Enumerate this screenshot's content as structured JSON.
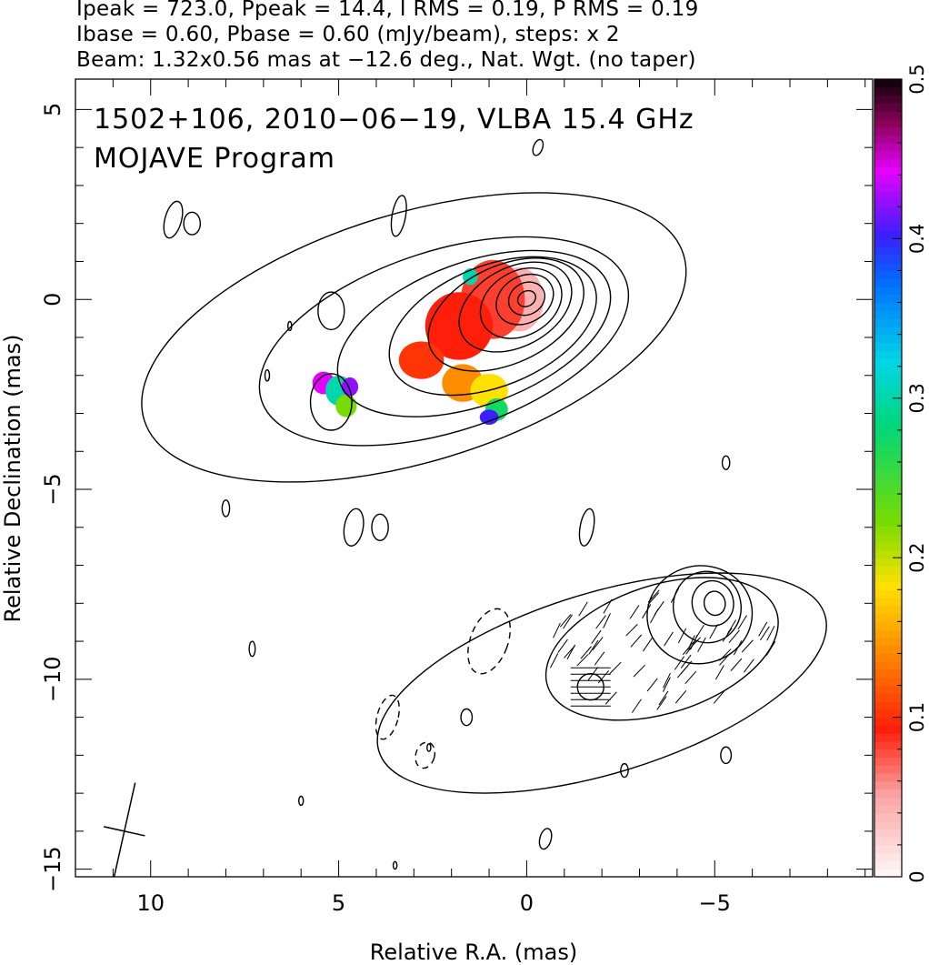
{
  "header": {
    "line1": "Ipeak = 723.0, Ppeak = 14.4, I RMS = 0.19, P RMS = 0.19",
    "line2": "Ibase = 0.60, Pbase = 0.60 (mJy/beam), steps: x 2",
    "line3": "Beam: 1.32x0.56 mas at −12.6 deg., Nat. Wgt. (no taper)"
  },
  "annotations": {
    "source_line": "1502+106, 2010−06−19, VLBA 15.4 GHz",
    "program_line": "MOJAVE Program"
  },
  "chart_data": {
    "type": "contour",
    "xlabel": "Relative R.A. (mas)",
    "ylabel": "Relative Declination (mas)",
    "xlim": [
      12,
      -9.2
    ],
    "ylim": [
      -15.2,
      5.8
    ],
    "x_ticks": [
      10,
      5,
      0,
      -5
    ],
    "y_ticks": [
      5,
      0,
      -5,
      -10,
      -15
    ],
    "x_tick_labels": [
      "10",
      "5",
      "0",
      "−5"
    ],
    "y_tick_labels": [
      "5",
      "0",
      "−5",
      "−10",
      "−15"
    ],
    "colorbar": {
      "min": 0,
      "max": 0.5,
      "ticks": [
        0,
        0.1,
        0.2,
        0.3,
        0.4,
        0.5
      ],
      "tick_labels": [
        "0",
        "0.1",
        "0.2",
        "0.3",
        "0.4",
        "0.5"
      ]
    },
    "upper_image": {
      "core": {
        "x": 0.0,
        "y": 0.0
      },
      "contours": [
        {
          "level": 1,
          "cx": 3.0,
          "cy": -1.0,
          "rx": 7.5,
          "ry": 3.3,
          "pa": -17
        },
        {
          "level": 2,
          "cx": 2.2,
          "cy": -1.1,
          "rx": 5.1,
          "ry": 2.4,
          "pa": -18
        },
        {
          "level": 3,
          "cx": 1.4,
          "cy": -0.9,
          "rx": 3.8,
          "ry": 1.9,
          "pa": -20
        },
        {
          "level": 4,
          "cx": 0.9,
          "cy": -0.7,
          "rx": 2.9,
          "ry": 1.6,
          "pa": -22
        },
        {
          "level": 5,
          "cx": 0.55,
          "cy": -0.4,
          "rx": 2.2,
          "ry": 1.3,
          "pa": -25
        },
        {
          "level": 6,
          "cx": 0.3,
          "cy": -0.2,
          "rx": 1.6,
          "ry": 1.05,
          "pa": -28
        },
        {
          "level": 7,
          "cx": 0.15,
          "cy": -0.1,
          "rx": 1.15,
          "ry": 0.85,
          "pa": -30
        },
        {
          "level": 8,
          "cx": 0.05,
          "cy": 0.0,
          "rx": 0.8,
          "ry": 0.62,
          "pa": -30
        },
        {
          "level": 9,
          "cx": 0.0,
          "cy": 0.02,
          "rx": 0.5,
          "ry": 0.42,
          "pa": -30
        },
        {
          "level": 10,
          "cx": 0.0,
          "cy": 0.02,
          "rx": 0.25,
          "ry": 0.2,
          "pa": -30
        }
      ],
      "islands": [
        {
          "cx": 9.4,
          "cy": 2.1,
          "rx": 0.22,
          "ry": 0.5,
          "pa": 15
        },
        {
          "cx": 8.9,
          "cy": 2.0,
          "rx": 0.22,
          "ry": 0.3,
          "pa": 0
        },
        {
          "cx": 3.4,
          "cy": 2.2,
          "rx": 0.18,
          "ry": 0.55,
          "pa": 10
        },
        {
          "cx": -0.3,
          "cy": 4.0,
          "rx": 0.12,
          "ry": 0.22,
          "pa": 20
        },
        {
          "cx": 4.6,
          "cy": -6.0,
          "rx": 0.25,
          "ry": 0.5,
          "pa": 10
        },
        {
          "cx": 3.9,
          "cy": -6.0,
          "rx": 0.22,
          "ry": 0.35,
          "pa": 0
        },
        {
          "cx": 8.0,
          "cy": -5.5,
          "rx": 0.1,
          "ry": 0.22,
          "pa": 0
        },
        {
          "cx": 6.3,
          "cy": -0.7,
          "rx": 0.05,
          "ry": 0.12,
          "pa": 0
        },
        {
          "cx": 6.9,
          "cy": -2.0,
          "rx": 0.06,
          "ry": 0.15,
          "pa": 0
        },
        {
          "cx": 5.2,
          "cy": -0.3,
          "rx": 0.35,
          "ry": 0.5,
          "pa": 0
        },
        {
          "cx": 5.2,
          "cy": -2.7,
          "rx": 0.55,
          "ry": 0.75,
          "pa": 0
        }
      ],
      "fractional_pol_pixels": [
        {
          "cx": 0.2,
          "cy": 0.0,
          "rx": 0.65,
          "ry": 0.85,
          "value": 0.04
        },
        {
          "cx": 0.9,
          "cy": 0.0,
          "rx": 0.85,
          "ry": 1.05,
          "value": 0.08
        },
        {
          "cx": 1.8,
          "cy": -0.7,
          "rx": 0.9,
          "ry": 0.9,
          "value": 0.09
        },
        {
          "cx": 2.8,
          "cy": -1.6,
          "rx": 0.6,
          "ry": 0.5,
          "value": 0.1
        },
        {
          "cx": 1.7,
          "cy": -2.2,
          "rx": 0.55,
          "ry": 0.5,
          "value": 0.14
        },
        {
          "cx": 1.0,
          "cy": -2.4,
          "rx": 0.5,
          "ry": 0.45,
          "value": 0.18
        },
        {
          "cx": 0.8,
          "cy": -2.9,
          "rx": 0.3,
          "ry": 0.3,
          "value": 0.27
        },
        {
          "cx": 1.0,
          "cy": -3.1,
          "rx": 0.25,
          "ry": 0.2,
          "value": 0.4
        },
        {
          "cx": 1.5,
          "cy": 0.6,
          "rx": 0.2,
          "ry": 0.22,
          "value": 0.3
        },
        {
          "cx": 5.4,
          "cy": -2.2,
          "rx": 0.3,
          "ry": 0.3,
          "value": 0.44
        },
        {
          "cx": 5.0,
          "cy": -2.4,
          "rx": 0.35,
          "ry": 0.4,
          "value": 0.3
        },
        {
          "cx": 4.8,
          "cy": -2.8,
          "rx": 0.28,
          "ry": 0.3,
          "value": 0.22
        },
        {
          "cx": 4.7,
          "cy": -2.3,
          "rx": 0.22,
          "ry": 0.25,
          "value": 0.42
        }
      ]
    },
    "lower_image": {
      "core": {
        "x": -5.0,
        "y": -8.0
      },
      "contours": [
        {
          "level": 1,
          "cx": -2.0,
          "cy": -10.1,
          "rx": 6.2,
          "ry": 2.4,
          "pa": -17
        },
        {
          "level": 2,
          "cx": -3.6,
          "cy": -9.2,
          "rx": 3.2,
          "ry": 1.7,
          "pa": -18
        },
        {
          "level": 3,
          "cx": -4.6,
          "cy": -8.3,
          "rx": 1.4,
          "ry": 1.3,
          "pa": -10
        },
        {
          "level": 4,
          "cx": -4.8,
          "cy": -8.1,
          "rx": 0.9,
          "ry": 0.95,
          "pa": -10
        },
        {
          "level": 5,
          "cx": -4.95,
          "cy": -8.0,
          "rx": 0.55,
          "ry": 0.6,
          "pa": -10
        },
        {
          "level": 6,
          "cx": -5.0,
          "cy": -8.0,
          "rx": 0.28,
          "ry": 0.32,
          "pa": -10
        }
      ],
      "dashed": [
        {
          "cx": 1.0,
          "cy": -9.0,
          "rx": 0.5,
          "ry": 0.9,
          "pa": 20
        },
        {
          "cx": 3.7,
          "cy": -11.0,
          "rx": 0.28,
          "ry": 0.6,
          "pa": 15
        },
        {
          "cx": 2.7,
          "cy": -12.0,
          "rx": 0.25,
          "ry": 0.35,
          "pa": 15
        }
      ],
      "islands": [
        {
          "cx": -1.7,
          "cy": -10.2,
          "rx": 0.35,
          "ry": 0.35,
          "pa": 0
        },
        {
          "cx": 7.3,
          "cy": -9.2,
          "rx": 0.08,
          "ry": 0.2,
          "pa": 0
        },
        {
          "cx": -0.5,
          "cy": -14.2,
          "rx": 0.15,
          "ry": 0.28,
          "pa": 15
        },
        {
          "cx": -2.6,
          "cy": -12.4,
          "rx": 0.1,
          "ry": 0.18,
          "pa": 0
        },
        {
          "cx": -5.3,
          "cy": -12.0,
          "rx": 0.14,
          "ry": 0.22,
          "pa": 0
        },
        {
          "cx": -5.3,
          "cy": -4.3,
          "rx": 0.1,
          "ry": 0.18,
          "pa": 0
        },
        {
          "cx": 1.6,
          "cy": -11.0,
          "rx": 0.15,
          "ry": 0.22,
          "pa": 0
        },
        {
          "cx": 2.6,
          "cy": -11.8,
          "rx": 0.05,
          "ry": 0.1,
          "pa": 0
        },
        {
          "cx": 6.0,
          "cy": -13.2,
          "rx": 0.06,
          "ry": 0.12,
          "pa": 0
        },
        {
          "cx": 3.5,
          "cy": -14.9,
          "rx": 0.05,
          "ry": 0.1,
          "pa": 0
        },
        {
          "cx": -1.6,
          "cy": -6.0,
          "rx": 0.18,
          "ry": 0.5,
          "pa": 10
        }
      ]
    },
    "beam": {
      "x": 10.7,
      "y": -14.0,
      "major": 1.32,
      "minor": 0.56,
      "pa": -12.6
    }
  }
}
